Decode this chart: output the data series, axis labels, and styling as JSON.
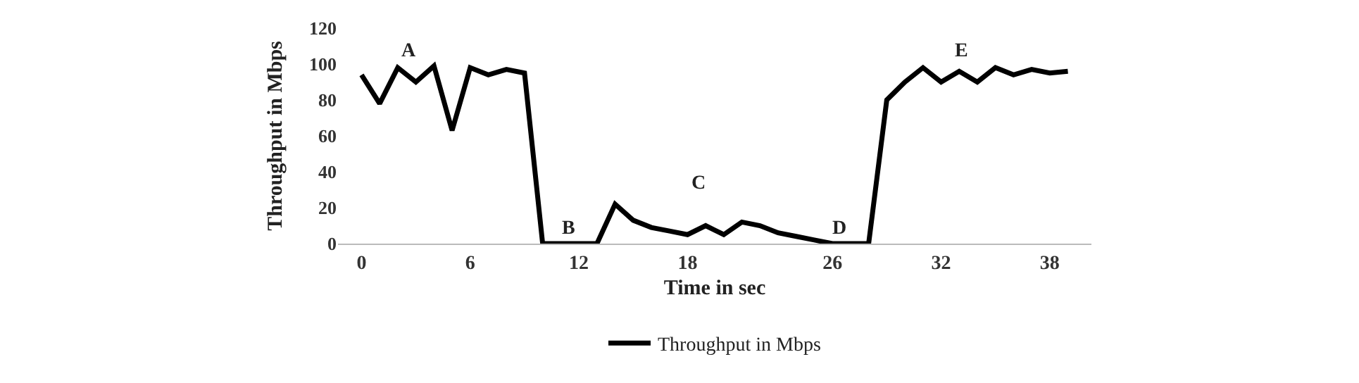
{
  "chart_data": {
    "type": "line",
    "xlabel": "Time in sec",
    "ylabel": "Throughput in Mbps",
    "x": [
      0,
      1,
      2,
      3,
      4,
      5,
      6,
      7,
      8,
      9,
      10,
      11,
      12,
      13,
      14,
      15,
      16,
      17,
      18,
      19,
      20,
      21,
      22,
      23,
      24,
      25,
      26,
      27,
      28,
      29,
      30,
      31,
      32,
      33,
      34,
      35,
      36,
      37,
      38,
      39
    ],
    "series": [
      {
        "name": "Throughput in Mbps",
        "color": "#000000",
        "values": [
          94,
          78,
          98,
          90,
          99,
          63,
          98,
          94,
          97,
          95,
          0,
          0,
          0,
          0,
          22,
          13,
          9,
          7,
          5,
          10,
          5,
          12,
          10,
          6,
          4,
          2,
          0,
          0,
          0,
          80,
          90,
          98,
          90,
          96,
          90,
          98,
          94,
          97,
          95,
          96
        ]
      }
    ],
    "xlim": [
      -1.3,
      40.3
    ],
    "xticks": [
      0,
      6,
      12,
      18,
      26,
      32,
      38
    ],
    "ylim": [
      0,
      120
    ],
    "yticks": [
      0,
      20,
      40,
      60,
      80,
      100,
      120
    ],
    "annotations": [
      "A",
      "B",
      "C",
      "D",
      "E"
    ],
    "grid": false,
    "legend": "bottom",
    "marker": "none",
    "line_style": "solid"
  }
}
